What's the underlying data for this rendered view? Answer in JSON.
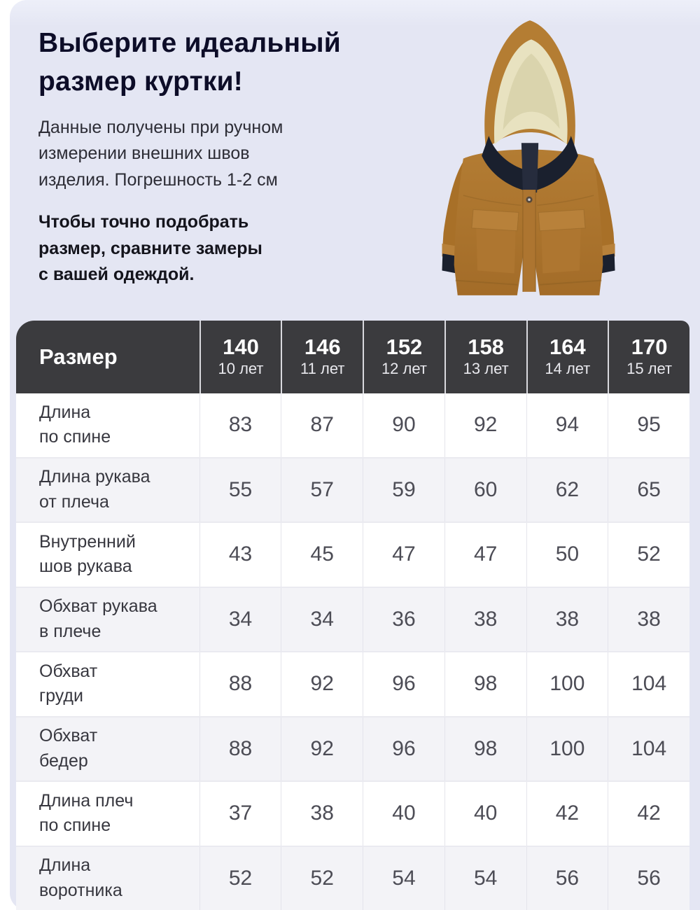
{
  "hero": {
    "title": "Выберите идеальный\nразмер куртки!",
    "intro": "Данные получены при ручном\nизмерении внешних швов\nизделия. Погрешность 1-2 см",
    "note": "Чтобы точно подобрать\nразмер, сравните замеры\nс вашей одеждой."
  },
  "jacket": {
    "description": "детская куртка-парка песочного цвета с капюшоном"
  },
  "table": {
    "corner_label": "Размер",
    "columns": [
      {
        "size": "140",
        "age": "10 лет"
      },
      {
        "size": "146",
        "age": "11 лет"
      },
      {
        "size": "152",
        "age": "12 лет"
      },
      {
        "size": "158",
        "age": "13 лет"
      },
      {
        "size": "164",
        "age": "14 лет"
      },
      {
        "size": "170",
        "age": "15 лет"
      }
    ],
    "rows": [
      {
        "label": "Длина\nпо спине",
        "values": [
          83,
          87,
          90,
          92,
          94,
          95
        ]
      },
      {
        "label": "Длина рукава\nот плеча",
        "values": [
          55,
          57,
          59,
          60,
          62,
          65
        ]
      },
      {
        "label": "Внутренний\nшов рукава",
        "values": [
          43,
          45,
          47,
          47,
          50,
          52
        ]
      },
      {
        "label": "Обхват рукава\nв плече",
        "values": [
          34,
          34,
          36,
          38,
          38,
          38
        ]
      },
      {
        "label": "Обхват\nгруди",
        "values": [
          88,
          92,
          96,
          98,
          100,
          104
        ]
      },
      {
        "label": "Обхват\nбедер",
        "values": [
          88,
          92,
          96,
          98,
          100,
          104
        ]
      },
      {
        "label": "Длина плеч\nпо спине",
        "values": [
          37,
          38,
          40,
          40,
          42,
          42
        ]
      },
      {
        "label": "Длина\nворотника",
        "values": [
          52,
          52,
          54,
          54,
          56,
          56
        ]
      }
    ]
  },
  "colors": {
    "page_background": "#e4e6f3",
    "table_header_background": "#3b3b3e",
    "table_header_text": "#ffffff",
    "row_alternate": "#f3f3f7",
    "title_text": "#0d0d28",
    "jacket_camel": "#b1792f",
    "jacket_lining": "#e8e2c0",
    "jacket_navy": "#1a202e"
  }
}
